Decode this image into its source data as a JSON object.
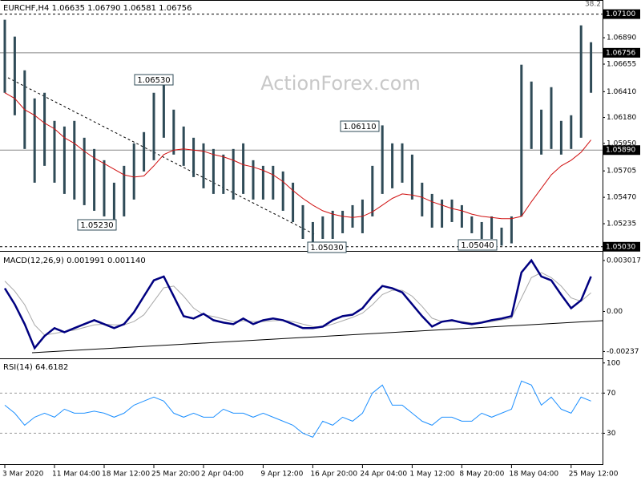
{
  "chart_data": [
    {
      "type": "ohlc",
      "title": "EURCHF,H4  1.06635 1.06790 1.06581 1.06756",
      "color": "#2f4b57",
      "high": [
        1.0705,
        1.069,
        1.066,
        1.0635,
        1.064,
        1.0615,
        1.061,
        1.0615,
        1.06,
        1.059,
        1.058,
        1.056,
        1.0575,
        1.0595,
        1.0605,
        1.064,
        1.0653,
        1.0625,
        1.061,
        1.06,
        1.0595,
        1.059,
        1.0585,
        1.059,
        1.0595,
        1.058,
        1.0575,
        1.0575,
        1.057,
        1.056,
        1.054,
        1.0525,
        1.053,
        1.0535,
        1.0535,
        1.054,
        1.0545,
        1.0575,
        1.0611,
        1.0595,
        1.0595,
        1.0585,
        1.056,
        1.055,
        1.0545,
        1.0545,
        1.054,
        1.053,
        1.0525,
        1.053,
        1.052,
        1.053,
        1.0665,
        1.065,
        1.0625,
        1.0645,
        1.0615,
        1.062,
        1.07,
        1.0685
      ],
      "low": [
        1.064,
        1.062,
        1.059,
        1.056,
        1.0575,
        1.056,
        1.055,
        1.0545,
        1.054,
        1.0535,
        1.053,
        1.0523,
        1.053,
        1.0545,
        1.057,
        1.058,
        1.06,
        1.0585,
        1.0575,
        1.0565,
        1.0555,
        1.055,
        1.055,
        1.0545,
        1.055,
        1.0545,
        1.0545,
        1.0545,
        1.0535,
        1.0525,
        1.051,
        1.0503,
        1.051,
        1.051,
        1.0515,
        1.052,
        1.0515,
        1.053,
        1.055,
        1.0555,
        1.056,
        1.0545,
        1.053,
        1.052,
        1.052,
        1.0525,
        1.052,
        1.0515,
        1.051,
        1.051,
        1.0504,
        1.0506,
        1.053,
        1.059,
        1.0585,
        1.059,
        1.0585,
        1.059,
        1.06,
        1.064
      ],
      "series": [
        {
          "color": "#d01010",
          "values": [
            1.064,
            1.0635,
            1.0625,
            1.062,
            1.0613,
            1.0608,
            1.06,
            1.0595,
            1.0588,
            1.0582,
            1.0577,
            1.0572,
            1.0567,
            1.0565,
            1.0566,
            1.0575,
            1.0585,
            1.0589,
            1.059,
            1.0589,
            1.0588,
            1.0585,
            1.0583,
            1.058,
            1.0576,
            1.0574,
            1.0571,
            1.0567,
            1.0561,
            1.0553,
            1.0546,
            1.054,
            1.0535,
            1.0532,
            1.053,
            1.0529,
            1.053,
            1.0534,
            1.054,
            1.0546,
            1.055,
            1.0549,
            1.0547,
            1.0543,
            1.054,
            1.0537,
            1.0535,
            1.0532,
            1.053,
            1.0529,
            1.0528,
            1.0528,
            1.053,
            1.0543,
            1.0555,
            1.0567,
            1.0575,
            1.058,
            1.0587,
            1.0598
          ]
        }
      ],
      "ylim": [
        1.05,
        1.0719
      ],
      "yticks": [
        {
          "value": 1.0689,
          "label": "1.06890"
        },
        1.06655,
        {
          "value": 1.0641,
          "label": "1.06410"
        },
        {
          "value": 1.0618,
          "label": "1.06180"
        },
        {
          "value": 1.0595,
          "label": "1.05950"
        },
        1.05705,
        {
          "value": 1.0547,
          "label": "1.05470"
        },
        1.05235
      ],
      "levels": [
        {
          "value": 1.071,
          "label": "1.07100",
          "style": "dashed"
        },
        {
          "value": 1.06756,
          "style": "solid"
        },
        {
          "value": 1.0589,
          "label": "1.05890",
          "style": "solid"
        },
        {
          "value": 1.0503,
          "label": "1.05030",
          "style": "dashed"
        }
      ],
      "annotations": [
        "1.06530",
        "1.05230",
        "1.06110",
        "1.05030",
        "1.05040"
      ],
      "corner_text": "38.2",
      "watermark": "ActionForex.com"
    },
    {
      "type": "line",
      "title": "MACD(12,26,9) 0.001991 0.001140",
      "series": [
        {
          "color": "#000080",
          "values": [
            0.00137,
            0.00042,
            -0.00075,
            -0.00217,
            -0.00146,
            -0.00099,
            -0.00123,
            -0.00099,
            -0.00075,
            -0.00052,
            -0.00075,
            -0.00099,
            -0.00075,
            -5e-05,
            0.0009,
            0.00184,
            0.00207,
            0.0009,
            -0.00028,
            -0.00042,
            -0.00014,
            -0.00052,
            -0.00066,
            -0.00075,
            -0.00042,
            -0.00075,
            -0.00052,
            -0.00042,
            -0.00052,
            -0.00075,
            -0.00099,
            -0.00099,
            -0.0009,
            -0.00052,
            -0.00028,
            -0.00019,
            0.00019,
            0.0009,
            0.00151,
            0.00137,
            0.00113,
            0.00042,
            -0.00028,
            -0.0009,
            -0.00061,
            -0.00052,
            -0.00066,
            -0.00075,
            -0.00066,
            -0.00052,
            -0.00042,
            -0.00028,
            0.00231,
            0.00302,
            0.00207,
            0.00184,
            0.00099,
            0.00019,
            0.00066,
            0.00207
          ]
        },
        {
          "color": "#a8a8a8",
          "values": [
            0.0018,
            0.0012,
            0.0004,
            -0.0008,
            -0.0014,
            -0.0013,
            -0.0012,
            -0.0011,
            -0.00095,
            -0.0008,
            -0.00075,
            -0.0008,
            -0.0008,
            -0.0006,
            -0.0002,
            0.0006,
            0.0014,
            0.0015,
            0.0009,
            0.0002,
            -0.0002,
            -0.0003,
            -0.00045,
            -0.0006,
            -0.00055,
            -0.0006,
            -0.0006,
            -0.00055,
            -0.00052,
            -0.0006,
            -0.00075,
            -0.0009,
            -0.00092,
            -0.00075,
            -0.00055,
            -0.00035,
            -0.0001,
            0.0004,
            0.001,
            0.00125,
            0.00125,
            0.0009,
            0.0003,
            -0.0004,
            -0.0006,
            -0.00058,
            -0.0006,
            -0.00068,
            -0.00068,
            -0.0006,
            -0.0005,
            -0.0004,
            0.0008,
            0.002,
            0.0023,
            0.002,
            0.0015,
            0.0008,
            0.0006,
            0.0011
          ]
        }
      ],
      "ylim": [
        -0.00273,
        0.00344
      ],
      "yticks": [
        0.003017,
        {
          "value": 0,
          "label": "0.00"
        },
        -0.00237
      ]
    },
    {
      "type": "line",
      "title": "RSI(14) 64.6182",
      "categories": [
        "3 Mar 2020",
        null,
        null,
        null,
        null,
        "11 Mar 04:00",
        null,
        null,
        null,
        null,
        "18 Mar 12:00",
        null,
        null,
        null,
        null,
        "25 Mar 20:00",
        null,
        null,
        null,
        null,
        "2 Apr 04:00",
        null,
        null,
        null,
        null,
        null,
        "9 Apr 12:00",
        null,
        null,
        null,
        null,
        "16 Apr 20:00",
        null,
        null,
        null,
        null,
        "24 Apr 04:00",
        null,
        null,
        null,
        null,
        "1 May 12:00",
        null,
        null,
        null,
        null,
        "8 May 20:00",
        null,
        null,
        null,
        null,
        "18 May 04:00",
        null,
        null,
        null,
        null,
        null,
        "25 May 12:00",
        null,
        null
      ],
      "series": [
        {
          "color": "#1e90ff",
          "values": [
            58,
            50,
            38,
            46,
            50,
            46,
            54,
            50,
            50,
            52,
            50,
            46,
            50,
            58,
            62,
            66,
            62,
            50,
            46,
            50,
            46,
            46,
            54,
            50,
            50,
            46,
            50,
            46,
            42,
            38,
            30,
            26,
            42,
            38,
            46,
            42,
            50,
            70,
            78,
            58,
            58,
            50,
            42,
            38,
            46,
            46,
            42,
            42,
            50,
            46,
            50,
            54,
            82,
            78,
            58,
            66,
            54,
            50,
            66,
            62
          ]
        }
      ],
      "ylim": [
        0,
        103
      ],
      "yticks": [
        100,
        70,
        30
      ],
      "grid_levels": [
        70,
        30
      ]
    }
  ]
}
